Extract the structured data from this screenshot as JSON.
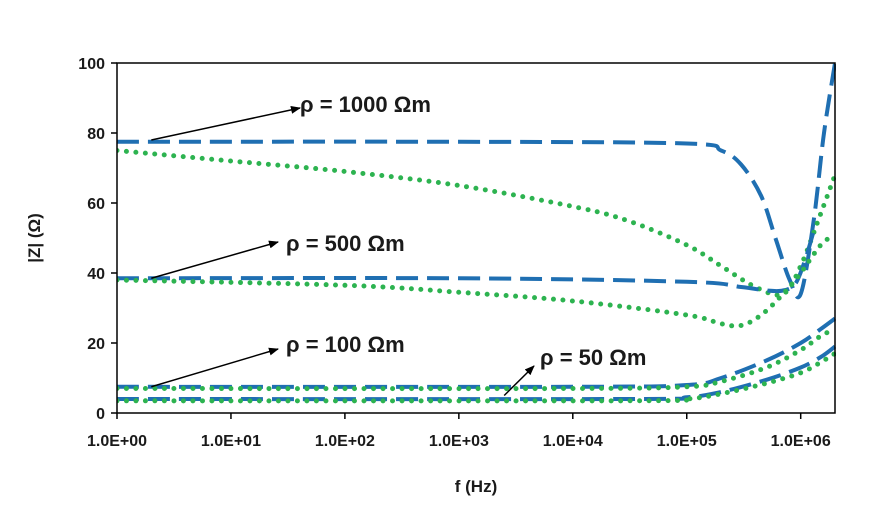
{
  "chart_data": {
    "type": "line",
    "xlabel": "f (Hz)",
    "ylabel": "|Z| (Ω)",
    "x_scale": "log",
    "xlim": [
      1,
      2000000
    ],
    "ylim": [
      0,
      100
    ],
    "x_tick_values": [
      1,
      10,
      100,
      1000,
      10000,
      100000,
      1000000
    ],
    "x_tick_labels": [
      "1.0E+00",
      "1.0E+01",
      "1.0E+02",
      "1.0E+03",
      "1.0E+04",
      "1.0E+05",
      "1.0E+06"
    ],
    "y_ticks": [
      0,
      20,
      40,
      60,
      80,
      100
    ],
    "grid": false,
    "legend": "none",
    "colors": {
      "dashed": "#1f6fb2",
      "dotted": "#2db350"
    },
    "series": [
      {
        "style": "dashed",
        "color": "#1f6fb2",
        "x": [
          1,
          1000,
          100000,
          200000,
          300000,
          450000,
          600000,
          800000,
          1000000,
          1300000,
          1600000,
          2000000
        ],
        "y": [
          77.5,
          77.5,
          77,
          75,
          71,
          62,
          50,
          38,
          34,
          55,
          80,
          100
        ]
      },
      {
        "style": "dotted",
        "color": "#2db350",
        "x": [
          1,
          10,
          100,
          1000,
          10000,
          30000,
          100000,
          200000,
          400000,
          700000,
          1000000,
          1500000,
          2000000
        ],
        "y": [
          75,
          72,
          69,
          65,
          59,
          55,
          48,
          42,
          36,
          34,
          42,
          57,
          68
        ]
      },
      {
        "style": "dashed",
        "color": "#1f6fb2",
        "x": [
          1,
          1000,
          100000,
          300000,
          500000,
          700000,
          900000,
          1100000,
          1300000
        ],
        "y": [
          38.5,
          38.5,
          37.5,
          36,
          35,
          35,
          37,
          44,
          52
        ]
      },
      {
        "style": "dotted",
        "color": "#2db350",
        "x": [
          1,
          100,
          1000,
          10000,
          100000,
          200000,
          300000,
          450000,
          700000,
          1000000,
          1500000,
          2000000
        ],
        "y": [
          38,
          36.5,
          34.5,
          32,
          28,
          25.5,
          25,
          28,
          34,
          40,
          48,
          51
        ]
      },
      {
        "style": "dashed",
        "color": "#1f6fb2",
        "x": [
          1,
          10000,
          100000,
          200000,
          500000,
          1000000,
          1500000,
          2000000
        ],
        "y": [
          7.5,
          7.5,
          8,
          10,
          15,
          20,
          24,
          27
        ]
      },
      {
        "style": "dotted",
        "color": "#2db350",
        "x": [
          1,
          10000,
          100000,
          200000,
          500000,
          1000000,
          1500000,
          2000000
        ],
        "y": [
          7,
          7,
          7.5,
          9,
          13,
          18,
          22,
          24
        ]
      },
      {
        "style": "dashed",
        "color": "#1f6fb2",
        "x": [
          1,
          30000,
          100000,
          200000,
          500000,
          1000000,
          1500000,
          2000000
        ],
        "y": [
          4,
          4,
          4.5,
          6,
          9.5,
          13,
          16,
          19
        ]
      },
      {
        "style": "dotted",
        "color": "#2db350",
        "x": [
          1,
          30000,
          100000,
          200000,
          500000,
          1000000,
          1500000,
          2000000
        ],
        "y": [
          3.5,
          3.5,
          4,
          5.5,
          8.5,
          11.5,
          14.5,
          17
        ]
      }
    ],
    "annotations": [
      {
        "text": "ρ = 1000 Ωm",
        "points_to": {
          "x": 2,
          "y": 78
        }
      },
      {
        "text": "ρ = 500 Ωm",
        "points_to": {
          "x": 2,
          "y": 38.5
        }
      },
      {
        "text": "ρ = 100 Ωm",
        "points_to": {
          "x": 2,
          "y": 7.5
        }
      },
      {
        "text": "ρ = 50 Ωm",
        "points_to": {
          "x": 2500,
          "y": 5
        }
      }
    ]
  }
}
